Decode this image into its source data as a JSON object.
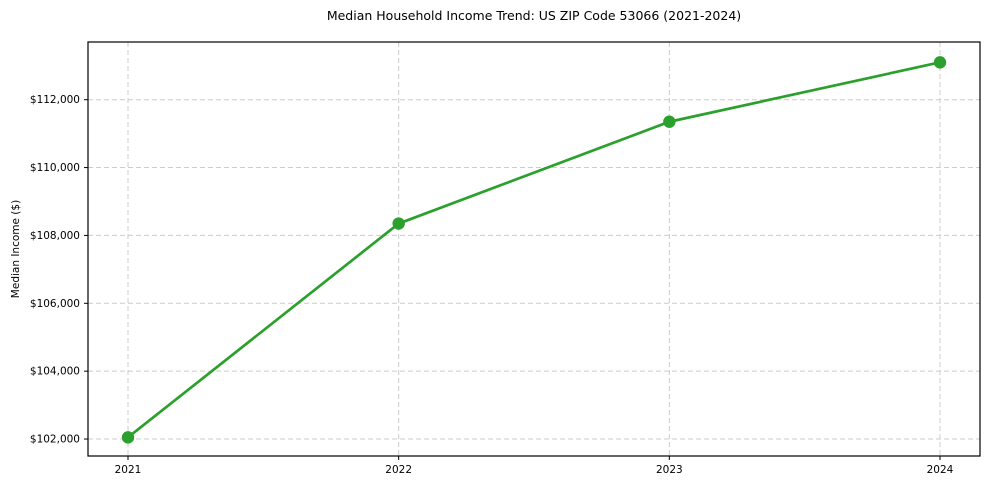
{
  "chart_data": {
    "type": "line",
    "title": "Median Household Income Trend: US ZIP Code 53066 (2021-2024)",
    "xlabel": "",
    "ylabel": "Median Income ($)",
    "categories": [
      "2021",
      "2022",
      "2023",
      "2024"
    ],
    "series": [
      {
        "name": "Median Household Income",
        "values": [
          102050,
          108350,
          111350,
          113100
        ],
        "color": "#2ca02c",
        "marker": "circle"
      }
    ],
    "ylim": [
      101500,
      113700
    ],
    "yticks": [
      {
        "value": 102000,
        "label": "$102,000"
      },
      {
        "value": 104000,
        "label": "$104,000"
      },
      {
        "value": 106000,
        "label": "$106,000"
      },
      {
        "value": 108000,
        "label": "$108,000"
      },
      {
        "value": 110000,
        "label": "$110,000"
      },
      {
        "value": 112000,
        "label": "$112,000"
      }
    ],
    "grid": true,
    "grid_style": "dashed",
    "legend_position": "none",
    "colors": {
      "line": "#2ca02c",
      "grid": "#cccccc",
      "spine": "#000000",
      "background": "#ffffff",
      "text": "#000000"
    }
  }
}
